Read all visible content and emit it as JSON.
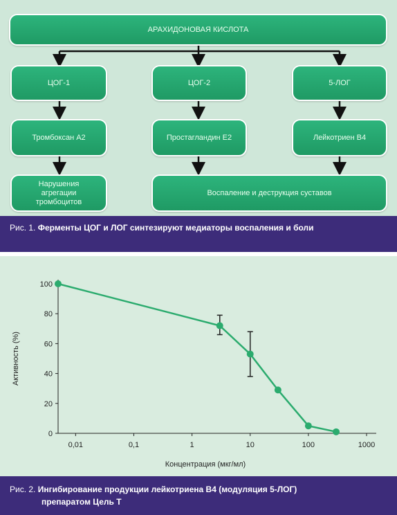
{
  "figure1": {
    "top_box": "АРАХИДОНОВАЯ КИСЛОТА",
    "enzymes": [
      "ЦОГ-1",
      "ЦОГ-2",
      "5-ЛОГ"
    ],
    "mediators": [
      "Тромбоксан  А2",
      "Простагландин  Е2",
      "Лейкотриен  В4"
    ],
    "effects": [
      "Нарушения\nагрегации\nтромбоцитов",
      "Воспаление и деструкция суставов"
    ],
    "caption_label": "Рис. 1.",
    "caption_text": "Ферменты ЦОГ и ЛОГ синтезируют медиаторы воспаления и боли"
  },
  "figure2": {
    "caption_label": "Рис. 2.",
    "caption_line1": "Ингибирование продукции лейкотриена В4 (модуляция 5-ЛОГ)",
    "caption_line2": "препаратом Цель Т"
  },
  "chart_data": {
    "type": "line",
    "xscale": "log",
    "xlabel": "Концентрация (мкг/мл)",
    "ylabel": "Активность (%)",
    "xlim": [
      0.005,
      1000
    ],
    "ylim": [
      0,
      100
    ],
    "xticks": [
      0.01,
      0.1,
      1,
      10,
      100,
      1000
    ],
    "xtick_labels": [
      "0,01",
      "0,1",
      "1",
      "10",
      "100",
      "1000"
    ],
    "yticks": [
      0,
      20,
      40,
      60,
      80,
      100
    ],
    "ytick_labels": [
      "0",
      "20",
      "40",
      "60",
      "80",
      "100"
    ],
    "grid": false,
    "series": [
      {
        "color": "#2bab6e",
        "x": [
          0.005,
          3,
          10,
          30,
          100,
          300
        ],
        "y": [
          100,
          72,
          53,
          29,
          5,
          1
        ],
        "error_low": [
          null,
          66,
          38,
          null,
          null,
          null
        ],
        "error_high": [
          null,
          79,
          68,
          null,
          null,
          null
        ]
      }
    ]
  }
}
